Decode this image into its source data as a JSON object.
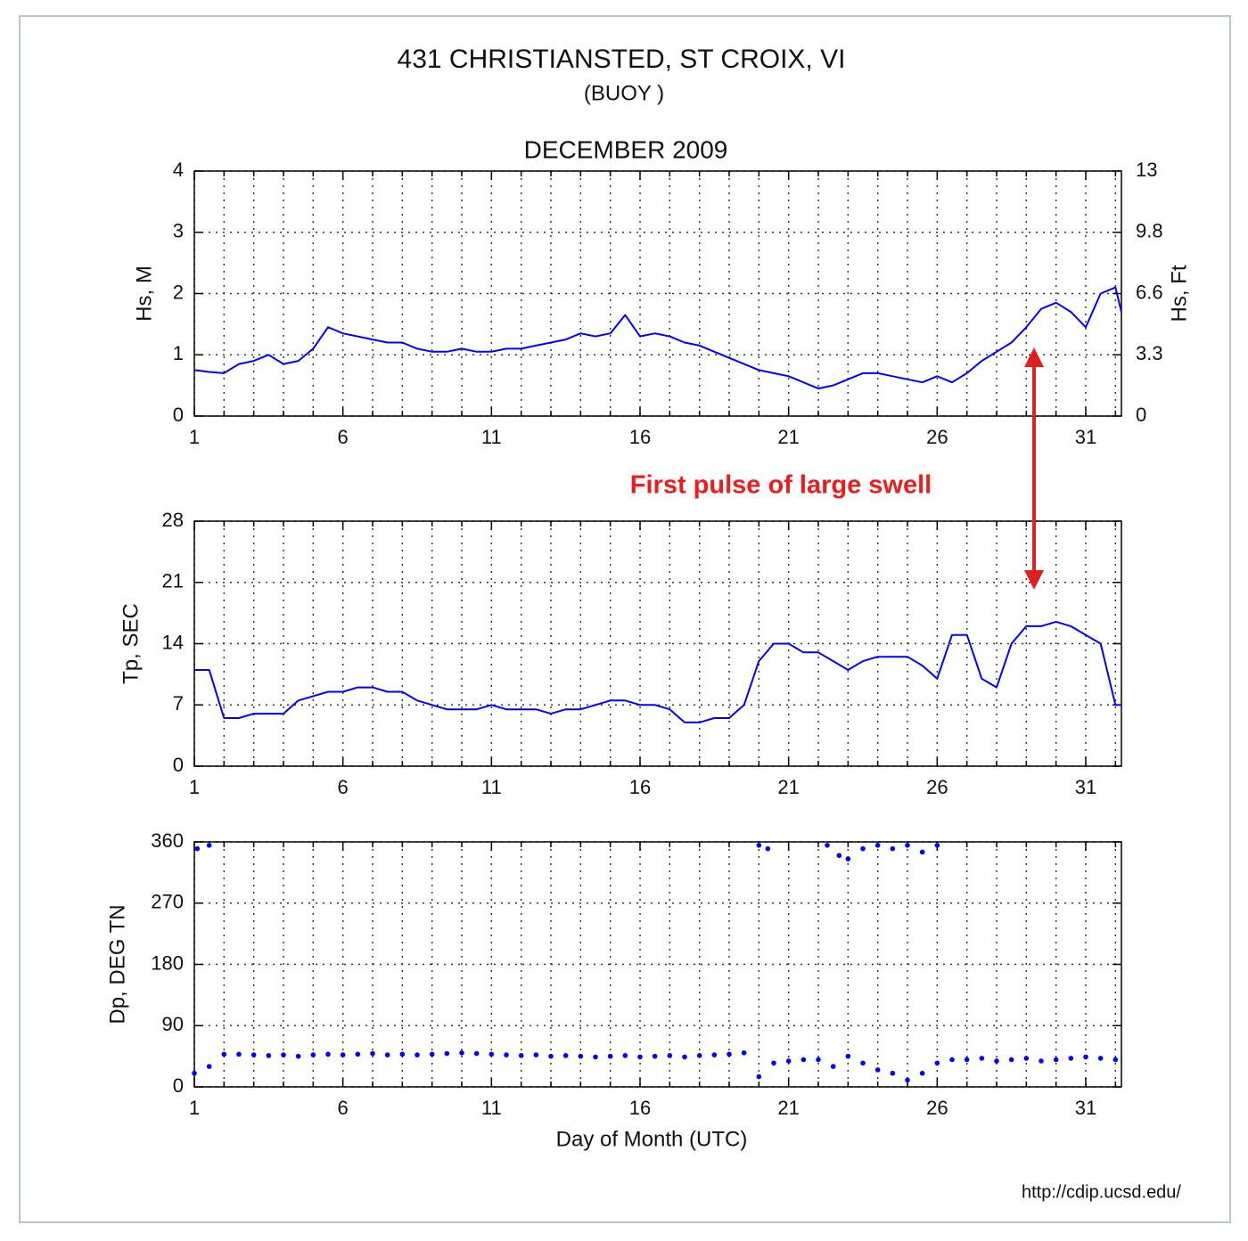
{
  "source": "http://cdip.ucsd.edu/",
  "chart_data": [
    {
      "type": "line",
      "title": "431 CHRISTIANSTED, ST CROIX, VI",
      "subtitle": "(BUOY )",
      "period": "DECEMBER 2009",
      "annotation": "First pulse of large swell",
      "ylabel": "Hs, M",
      "y2label": "Hs, Ft",
      "xlim": [
        1,
        32.2
      ],
      "xticks": [
        1,
        6,
        11,
        16,
        21,
        26,
        31
      ],
      "xminorticks": [
        2,
        3,
        4,
        5,
        7,
        8,
        9,
        10,
        12,
        13,
        14,
        15,
        17,
        18,
        19,
        20,
        22,
        23,
        24,
        25,
        27,
        28,
        29,
        30,
        32
      ],
      "ylim": [
        0,
        4
      ],
      "yticks": [
        0,
        1,
        2,
        3,
        4
      ],
      "y2lim": [
        0,
        13.12
      ],
      "y2ticks": [
        0,
        {
          "value": 3.28,
          "label": "3.3"
        },
        {
          "value": 6.56,
          "label": "6.6"
        },
        {
          "value": 9.84,
          "label": "9.8"
        },
        {
          "value": 13.12,
          "label": "13"
        }
      ],
      "grid": true,
      "series": [
        {
          "color": "#0000ff",
          "x": [
            1,
            1.5,
            2,
            2.5,
            3,
            3.5,
            4,
            4.5,
            5,
            5.5,
            6,
            6.5,
            7,
            7.5,
            8,
            8.5,
            9,
            9.5,
            10,
            10.5,
            11,
            11.5,
            12,
            12.5,
            13,
            13.5,
            14,
            14.5,
            15,
            15.5,
            16,
            16.5,
            17,
            17.5,
            18,
            18.5,
            19,
            19.5,
            20,
            20.5,
            21,
            21.5,
            22,
            22.5,
            23,
            23.5,
            24,
            24.5,
            25,
            25.5,
            26,
            26.5,
            27,
            27.5,
            28,
            28.5,
            29,
            29.5,
            30,
            30.5,
            31,
            31.5,
            32,
            32.2
          ],
          "values": [
            0.75,
            0.72,
            0.7,
            0.85,
            0.9,
            1.0,
            0.85,
            0.9,
            1.1,
            1.45,
            1.35,
            1.3,
            1.25,
            1.2,
            1.2,
            1.1,
            1.05,
            1.05,
            1.1,
            1.05,
            1.05,
            1.1,
            1.1,
            1.15,
            1.2,
            1.25,
            1.35,
            1.3,
            1.35,
            1.65,
            1.3,
            1.35,
            1.3,
            1.2,
            1.15,
            1.05,
            0.95,
            0.85,
            0.75,
            0.7,
            0.65,
            0.55,
            0.45,
            0.5,
            0.6,
            0.7,
            0.7,
            0.65,
            0.6,
            0.55,
            0.65,
            0.55,
            0.7,
            0.9,
            1.05,
            1.2,
            1.45,
            1.75,
            1.85,
            1.7,
            1.45,
            2.0,
            2.1,
            1.7
          ]
        }
      ]
    },
    {
      "type": "line",
      "ylabel": "Tp, SEC",
      "xlim": [
        1,
        32.2
      ],
      "xticks": [
        1,
        6,
        11,
        16,
        21,
        26,
        31
      ],
      "xminorticks": [
        2,
        3,
        4,
        5,
        7,
        8,
        9,
        10,
        12,
        13,
        14,
        15,
        17,
        18,
        19,
        20,
        22,
        23,
        24,
        25,
        27,
        28,
        29,
        30,
        32
      ],
      "ylim": [
        0,
        28
      ],
      "yticks": [
        0,
        7,
        14,
        21,
        28
      ],
      "grid": true,
      "series": [
        {
          "color": "#0000ff",
          "x": [
            1,
            1.5,
            2,
            2.5,
            3,
            3.5,
            4,
            4.5,
            5,
            5.5,
            6,
            6.5,
            7,
            7.5,
            8,
            8.5,
            9,
            9.5,
            10,
            10.5,
            11,
            11.5,
            12,
            12.5,
            13,
            13.5,
            14,
            14.5,
            15,
            15.5,
            16,
            16.5,
            17,
            17.5,
            18,
            18.5,
            19,
            19.5,
            20,
            20.5,
            21,
            21.5,
            22,
            22.5,
            23,
            23.5,
            24,
            24.5,
            25,
            25.5,
            26,
            26.5,
            27,
            27.5,
            28,
            28.5,
            29,
            29.5,
            30,
            30.5,
            31,
            31.5,
            32,
            32.2
          ],
          "values": [
            11,
            11,
            5.5,
            5.5,
            6,
            6,
            6,
            7.5,
            8,
            8.5,
            8.5,
            9,
            9,
            8.5,
            8.5,
            7.5,
            7,
            6.5,
            6.5,
            6.5,
            7,
            6.5,
            6.5,
            6.5,
            6,
            6.5,
            6.5,
            7,
            7.5,
            7.5,
            7,
            7,
            6.5,
            5,
            5,
            5.5,
            5.5,
            7,
            12,
            14,
            14,
            13,
            13,
            12,
            11,
            12,
            12.5,
            12.5,
            12.5,
            11.5,
            10,
            15,
            15,
            10,
            9,
            14,
            16,
            16,
            16.5,
            16,
            15,
            14,
            7,
            7
          ]
        }
      ]
    },
    {
      "type": "scatter",
      "ylabel": "Dp, DEG TN",
      "xlabel": "Day of Month (UTC)",
      "xlim": [
        1,
        32.2
      ],
      "xticks": [
        1,
        6,
        11,
        16,
        21,
        26,
        31
      ],
      "xminorticks": [
        2,
        3,
        4,
        5,
        7,
        8,
        9,
        10,
        12,
        13,
        14,
        15,
        17,
        18,
        19,
        20,
        22,
        23,
        24,
        25,
        27,
        28,
        29,
        30,
        32
      ],
      "ylim": [
        0,
        360
      ],
      "yticks": [
        0,
        90,
        180,
        270,
        360
      ],
      "grid": true,
      "series": [
        {
          "color": "#0000ff",
          "x": [
            1,
            1.5,
            2,
            2.5,
            3,
            3.5,
            4,
            4.5,
            5,
            5.5,
            6,
            6.5,
            7,
            7.5,
            8,
            8.5,
            9,
            9.5,
            10,
            10.5,
            11,
            11.5,
            12,
            12.5,
            13,
            13.5,
            14,
            14.5,
            15,
            15.5,
            16,
            16.5,
            17,
            17.5,
            18,
            18.5,
            19,
            19.5,
            20,
            20.5,
            21,
            21.5,
            22,
            22.5,
            23,
            23.5,
            24,
            24.5,
            25,
            25.5,
            26,
            26.5,
            27,
            27.5,
            28,
            28.5,
            29,
            29.5,
            30,
            30.5,
            31,
            31.5,
            32,
            1.1,
            1.5,
            20,
            20.3,
            22.3,
            22.7,
            23,
            23.5,
            24,
            24.5,
            25,
            25.5,
            26
          ],
          "values": [
            20,
            30,
            48,
            48,
            47,
            46,
            47,
            45,
            47,
            48,
            47,
            48,
            49,
            47,
            48,
            47,
            48,
            49,
            50,
            49,
            48,
            47,
            46,
            47,
            45,
            46,
            45,
            44,
            45,
            46,
            44,
            45,
            46,
            44,
            46,
            47,
            48,
            50,
            15,
            35,
            38,
            40,
            40,
            30,
            45,
            35,
            25,
            20,
            10,
            20,
            35,
            40,
            40,
            42,
            38,
            40,
            42,
            38,
            40,
            42,
            44,
            42,
            40,
            350,
            355,
            355,
            350,
            355,
            340,
            335,
            350,
            355,
            350,
            355,
            345,
            355
          ]
        }
      ]
    }
  ]
}
